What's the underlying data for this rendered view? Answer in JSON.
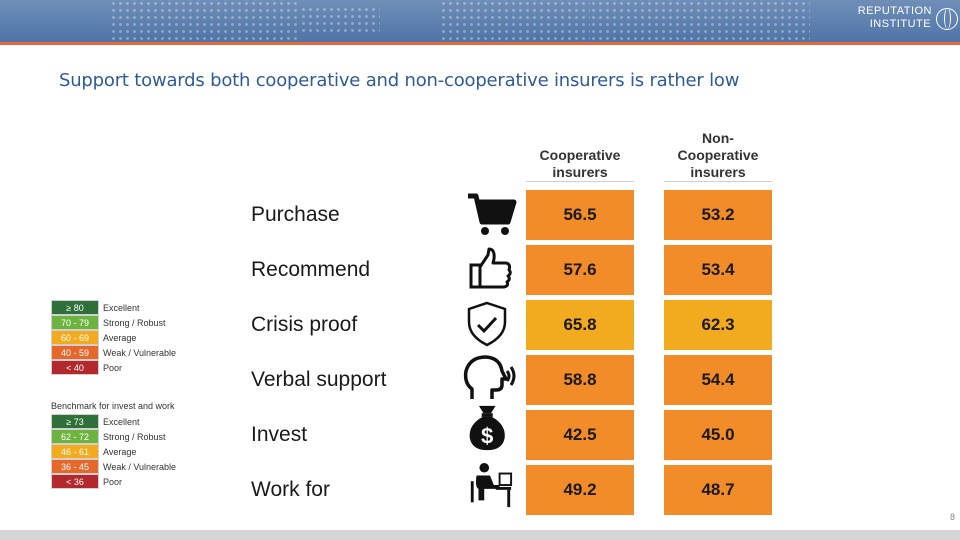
{
  "header": {
    "logo_line1": "REPUTATION",
    "logo_line2": "INSTITUTE"
  },
  "slide": {
    "title": "Support towards both cooperative and non-cooperative insurers is rather low",
    "page_number": "8"
  },
  "table": {
    "columns": [
      "Cooperative insurers",
      "Non-Cooperative insurers"
    ],
    "column_lines": [
      [
        "Cooperative",
        "insurers"
      ],
      [
        "Non-",
        "Cooperative",
        "insurers"
      ]
    ],
    "rows": [
      {
        "label": "Purchase",
        "icon": "shopping-cart-icon",
        "coop": "56.5",
        "noncoop": "53.2",
        "coop_color": "#f28c28",
        "noncoop_color": "#f28c28"
      },
      {
        "label": "Recommend",
        "icon": "thumbs-up-icon",
        "coop": "57.6",
        "noncoop": "53.4",
        "coop_color": "#f28c28",
        "noncoop_color": "#f28c28"
      },
      {
        "label": "Crisis proof",
        "icon": "shield-check-icon",
        "coop": "65.8",
        "noncoop": "62.3",
        "coop_color": "#f2aa1f",
        "noncoop_color": "#f2aa1f"
      },
      {
        "label": "Verbal support",
        "icon": "speaking-head-icon",
        "coop": "58.8",
        "noncoop": "54.4",
        "coop_color": "#f28c28",
        "noncoop_color": "#f28c28"
      },
      {
        "label": "Invest",
        "icon": "money-bag-icon",
        "coop": "42.5",
        "noncoop": "45.0",
        "coop_color": "#f28c28",
        "noncoop_color": "#f28c28"
      },
      {
        "label": "Work for",
        "icon": "person-at-desk-icon",
        "coop": "49.2",
        "noncoop": "48.7",
        "coop_color": "#f28c28",
        "noncoop_color": "#f28c28"
      }
    ]
  },
  "legend1": {
    "rows": [
      {
        "range": "≥ 80",
        "label": "Excellent",
        "color": "#2e6f3a"
      },
      {
        "range": "70 - 79",
        "label": "Strong / Robust",
        "color": "#6db33f"
      },
      {
        "range": "60 - 69",
        "label": "Average",
        "color": "#f2aa1f"
      },
      {
        "range": "40 - 59",
        "label": "Weak / Vulnerable",
        "color": "#e5682a"
      },
      {
        "range": "< 40",
        "label": "Poor",
        "color": "#b3282d"
      }
    ]
  },
  "legend2": {
    "heading": "Benchmark for invest and work",
    "rows": [
      {
        "range": "≥ 73",
        "label": "Excellent",
        "color": "#2e6f3a"
      },
      {
        "range": "62 - 72",
        "label": "Strong / Robust",
        "color": "#6db33f"
      },
      {
        "range": "46 - 61",
        "label": "Average",
        "color": "#f2aa1f"
      },
      {
        "range": "36 - 45",
        "label": "Weak / Vulnerable",
        "color": "#e5682a"
      },
      {
        "range": "< 36",
        "label": "Poor",
        "color": "#b3282d"
      }
    ]
  }
}
